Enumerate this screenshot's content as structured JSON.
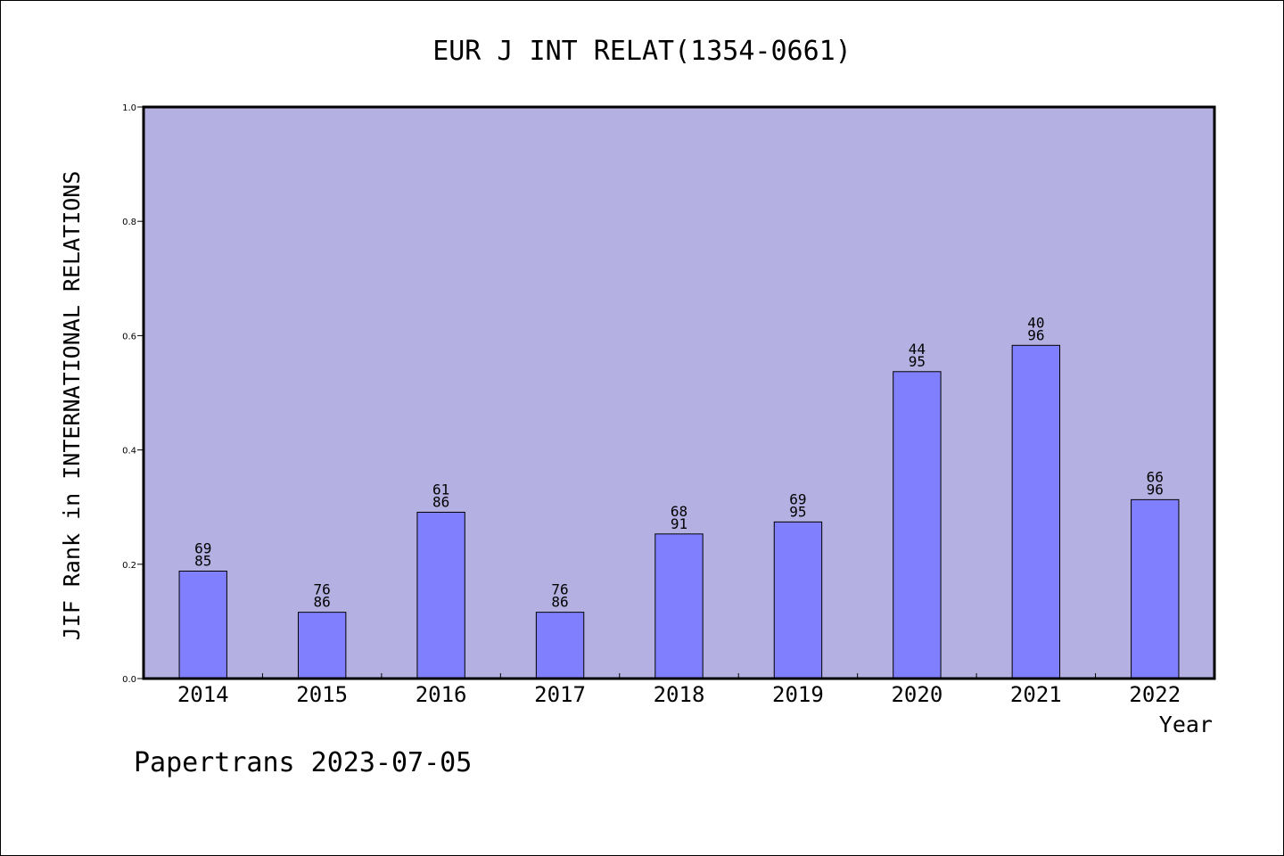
{
  "chart_data": {
    "type": "bar",
    "title": "EUR J INT RELAT(1354-0661)",
    "xlabel": "Year",
    "ylabel": "JIF Rank in INTERNATIONAL RELATIONS",
    "ylim": [
      0,
      1.0
    ],
    "yticks": [
      "0.0",
      "0.2",
      "0.4",
      "0.6",
      "0.8",
      "1.0"
    ],
    "categories": [
      "2014",
      "2015",
      "2016",
      "2017",
      "2018",
      "2019",
      "2020",
      "2021",
      "2022"
    ],
    "values": [
      0.188,
      0.116,
      0.291,
      0.116,
      0.253,
      0.274,
      0.537,
      0.583,
      0.313
    ],
    "bar_labels": [
      {
        "rank": "69",
        "total": "85"
      },
      {
        "rank": "76",
        "total": "86"
      },
      {
        "rank": "61",
        "total": "86"
      },
      {
        "rank": "76",
        "total": "86"
      },
      {
        "rank": "68",
        "total": "91"
      },
      {
        "rank": "69",
        "total": "95"
      },
      {
        "rank": "44",
        "total": "95"
      },
      {
        "rank": "40",
        "total": "96"
      },
      {
        "rank": "66",
        "total": "96"
      }
    ],
    "grid": false,
    "colors": {
      "plot_background": "#b5b0e2",
      "bar_fill": "#8080ff",
      "bar_stroke": "#000000",
      "frame": "#000000"
    }
  },
  "footer": {
    "text": "Papertrans 2023-07-05"
  }
}
